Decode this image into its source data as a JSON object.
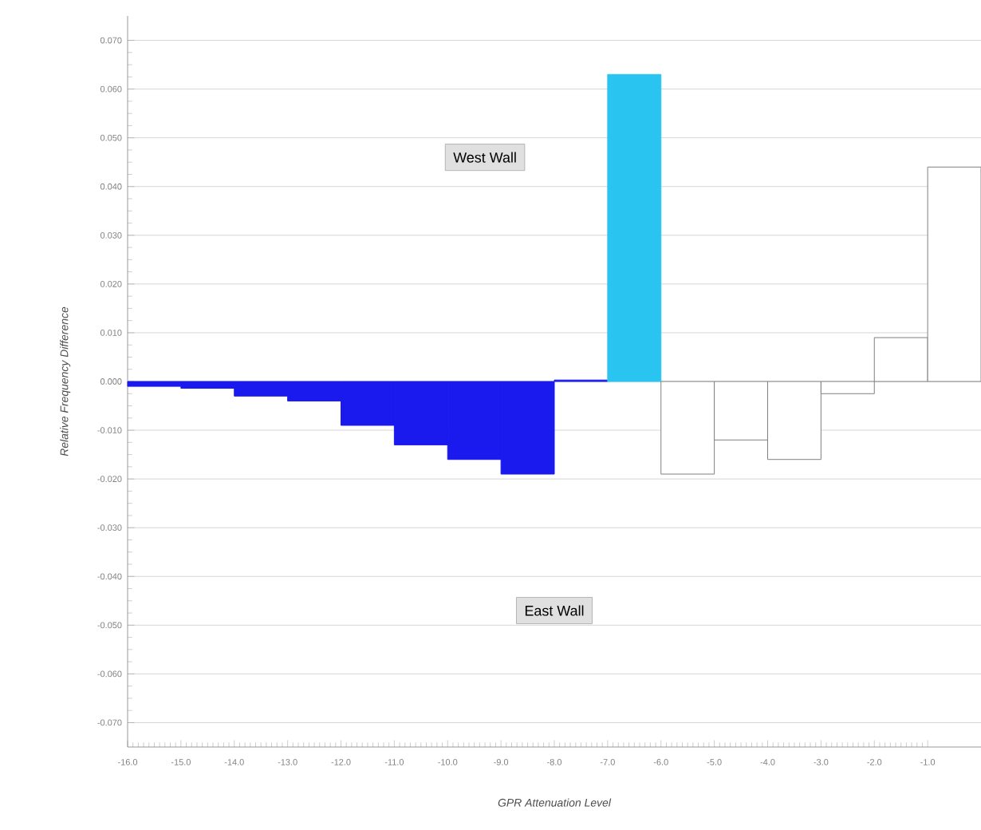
{
  "chart_data": {
    "type": "bar",
    "xlabel": "GPR Attenuation Level",
    "ylabel": "Relative Frequency Difference",
    "x": [
      -15.5,
      -14.5,
      -13.5,
      -12.5,
      -11.5,
      -10.5,
      -9.5,
      -8.5,
      -7.5,
      -6.5,
      -5.5,
      -4.5,
      -3.5,
      -2.5,
      -1.5,
      -0.5
    ],
    "values": [
      -0.001,
      -0.0014,
      -0.003,
      -0.004,
      -0.009,
      -0.013,
      -0.016,
      -0.019,
      0.0003,
      0.063,
      -0.019,
      -0.012,
      -0.016,
      -0.0025,
      0.009,
      0.044
    ],
    "colors": [
      "#1a1aee",
      "#1a1aee",
      "#1a1aee",
      "#1a1aee",
      "#1a1aee",
      "#1a1aee",
      "#1a1aee",
      "#1a1aee",
      "#1a1aee",
      "#29c5f0",
      "#ffffff",
      "#ffffff",
      "#ffffff",
      "#ffffff",
      "#ffffff",
      "#ffffff"
    ],
    "xlim": [
      -16,
      0
    ],
    "ylim": [
      -0.075,
      0.075
    ],
    "xticks": [
      {
        "value": -16,
        "label": "-16.0"
      },
      {
        "value": -15,
        "label": "-15.0"
      },
      {
        "value": -14,
        "label": "-14.0"
      },
      {
        "value": -13,
        "label": "-13.0"
      },
      {
        "value": -12,
        "label": "-12.0"
      },
      {
        "value": -11,
        "label": "-11.0"
      },
      {
        "value": -10,
        "label": "-10.0"
      },
      {
        "value": -9,
        "label": "-9.0"
      },
      {
        "value": -8,
        "label": "-8.0"
      },
      {
        "value": -7,
        "label": "-7.0"
      },
      {
        "value": -6,
        "label": "-6.0"
      },
      {
        "value": -5,
        "label": "-5.0"
      },
      {
        "value": -4,
        "label": "-4.0"
      },
      {
        "value": -3,
        "label": "-3.0"
      },
      {
        "value": -2,
        "label": "-2.0"
      },
      {
        "value": -1,
        "label": "-1.0"
      }
    ],
    "yticks": [
      {
        "value": 0.07,
        "label": "0.070"
      },
      {
        "value": 0.06,
        "label": "0.060"
      },
      {
        "value": 0.05,
        "label": "0.050"
      },
      {
        "value": 0.04,
        "label": "0.040"
      },
      {
        "value": 0.03,
        "label": "0.030"
      },
      {
        "value": 0.02,
        "label": "0.020"
      },
      {
        "value": 0.01,
        "label": "0.010"
      },
      {
        "value": 0,
        "label": "0.000"
      },
      {
        "value": -0.01,
        "label": "-0.010"
      },
      {
        "value": -0.02,
        "label": "-0.020"
      },
      {
        "value": -0.03,
        "label": "-0.030"
      },
      {
        "value": -0.04,
        "label": "-0.040"
      },
      {
        "value": -0.05,
        "label": "-0.050"
      },
      {
        "value": -0.06,
        "label": "-0.060"
      },
      {
        "value": -0.07,
        "label": "-0.070"
      }
    ],
    "grid": "y",
    "annotations": [
      "West Wall",
      "East Wall"
    ]
  }
}
